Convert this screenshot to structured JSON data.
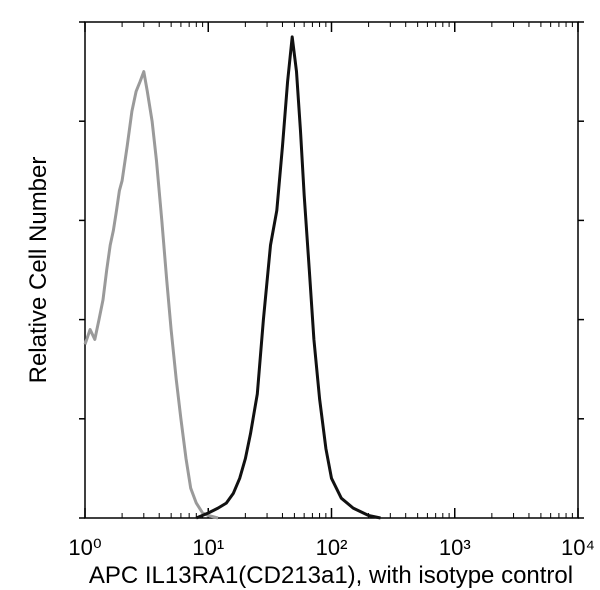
{
  "chart_data": {
    "type": "line",
    "xlabel": "APC  IL13RA1(CD213a1),  with isotype control",
    "ylabel": "Relative Cell Number",
    "xscale": "log",
    "xlim": [
      1,
      10000
    ],
    "xticks": [
      {
        "value": 1,
        "label": "10⁰"
      },
      {
        "value": 10,
        "label": "10¹"
      },
      {
        "value": 100,
        "label": "10²"
      },
      {
        "value": 1000,
        "label": "10³"
      },
      {
        "value": 10000,
        "label": "10⁴"
      }
    ],
    "ylim": [
      0,
      100
    ],
    "yticks": [
      0,
      20,
      40,
      60,
      80,
      100
    ],
    "series": [
      {
        "color": "#9a9a9a",
        "x": [
          1,
          1.1,
          1.2,
          1.3,
          1.4,
          1.5,
          1.6,
          1.7,
          1.8,
          1.9,
          2.0,
          2.2,
          2.4,
          2.6,
          2.8,
          3.0,
          3.2,
          3.5,
          3.8,
          4.2,
          4.6,
          5.0,
          5.5,
          6.0,
          6.6,
          7.2,
          8.0,
          9.0,
          10,
          12
        ],
        "values": [
          35,
          38,
          36,
          40,
          44,
          50,
          55,
          58,
          62,
          66,
          68,
          75,
          82,
          86,
          88,
          90,
          86,
          80,
          72,
          60,
          48,
          38,
          28,
          20,
          12,
          6,
          3,
          1,
          0.5,
          0
        ]
      },
      {
        "color": "#111111",
        "x": [
          8,
          10,
          12,
          14,
          16,
          18,
          20,
          22,
          25,
          28,
          32,
          36,
          40,
          44,
          48,
          52,
          56,
          60,
          66,
          72,
          80,
          90,
          100,
          120,
          150,
          200,
          250
        ],
        "values": [
          0,
          1,
          2,
          3,
          5,
          8,
          12,
          17,
          25,
          40,
          55,
          62,
          75,
          88,
          97,
          90,
          78,
          65,
          50,
          36,
          24,
          14,
          8,
          4,
          2,
          0.5,
          0
        ]
      }
    ]
  }
}
